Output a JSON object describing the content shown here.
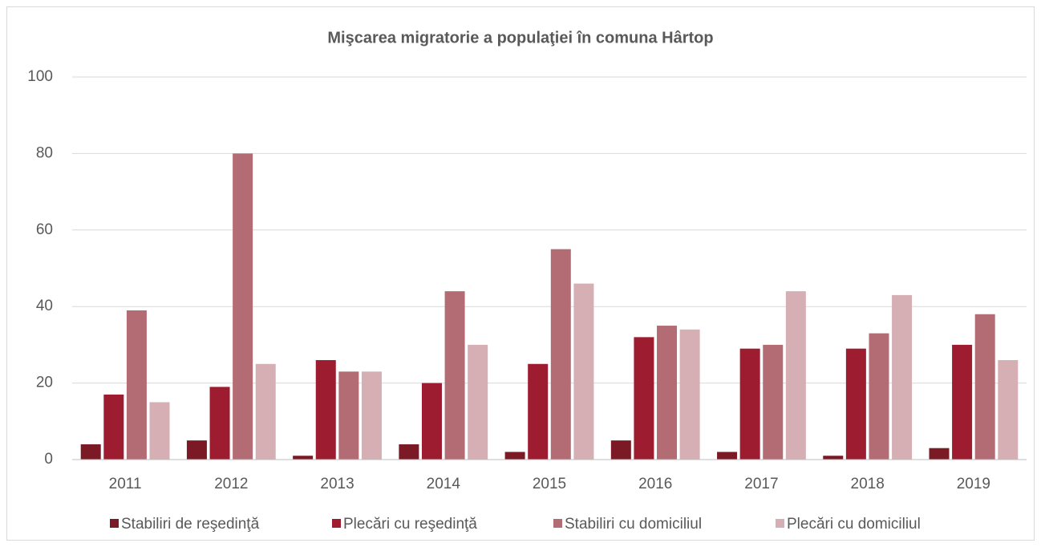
{
  "chart_data": {
    "type": "bar",
    "title": "Mişcarea migratorie a populaţiei în comuna Hârtop",
    "categories": [
      "2011",
      "2012",
      "2013",
      "2014",
      "2015",
      "2016",
      "2017",
      "2018",
      "2019"
    ],
    "series": [
      {
        "name": "Stabiliri de reşedinţă",
        "color": "#7b1a25",
        "values": [
          4,
          5,
          1,
          4,
          2,
          5,
          2,
          1,
          3
        ]
      },
      {
        "name": "Plecări cu reşedinţă",
        "color": "#9d1c2f",
        "values": [
          17,
          19,
          26,
          20,
          25,
          32,
          29,
          29,
          30
        ]
      },
      {
        "name": "Stabiliri cu domiciliul",
        "color": "#b46c74",
        "values": [
          39,
          80,
          23,
          44,
          55,
          35,
          30,
          33,
          38
        ]
      },
      {
        "name": "Plecări cu domiciliul",
        "color": "#d6afb4",
        "values": [
          15,
          25,
          23,
          30,
          46,
          34,
          44,
          43,
          26
        ]
      }
    ],
    "ylim": [
      0,
      100
    ],
    "yticks": [
      0,
      20,
      40,
      60,
      80,
      100
    ],
    "grid": true,
    "legend": "bottom"
  }
}
